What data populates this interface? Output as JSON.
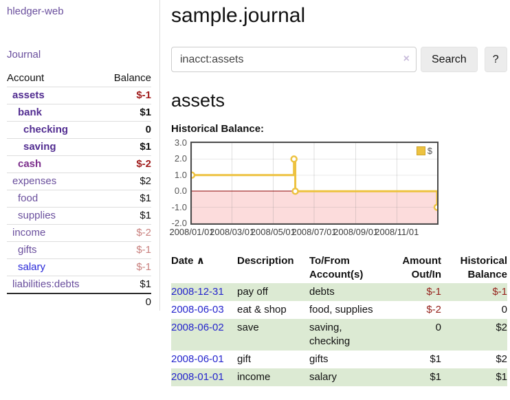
{
  "colors": {
    "link_purple": "#6a4f9d",
    "account_bold_purple": "#522d91",
    "cash_purple": "#7b2d8b",
    "link_blue": "#2626d8",
    "date_blue": "#2525cd",
    "negative_dark_red": "#a01c1c",
    "negative_light_red": "#c9807e",
    "register_negative_red": "#96231d",
    "row_highlight_green": "#dcead3",
    "chart_gold": "#edc240",
    "chart_negative_pink": "#fcdcdc",
    "chart_zero_line": "#8b0000"
  },
  "sidebar": {
    "brand": "hledger-web",
    "journal_link": "Journal",
    "accounts": {
      "header": {
        "account": "Account",
        "balance": "Balance"
      },
      "rows": [
        {
          "name": "assets",
          "indent": 1,
          "bold": true,
          "color": "#522d91",
          "balance": "$-1",
          "bcolor": "#a01c1c",
          "bbold": true
        },
        {
          "name": "bank",
          "indent": 2,
          "bold": true,
          "color": "#522d91",
          "balance": "$1",
          "bcolor": "#111111",
          "bbold": true
        },
        {
          "name": "checking",
          "indent": 3,
          "bold": true,
          "color": "#522d91",
          "balance": "0",
          "bcolor": "#111111",
          "bbold": true
        },
        {
          "name": "saving",
          "indent": 3,
          "bold": true,
          "color": "#522d91",
          "balance": "$1",
          "bcolor": "#111111",
          "bbold": true
        },
        {
          "name": "cash",
          "indent": 2,
          "bold": true,
          "color": "#7b2d8b",
          "balance": "$-2",
          "bcolor": "#a01c1c",
          "bbold": true
        },
        {
          "name": "expenses",
          "indent": 1,
          "bold": false,
          "color": "#6a4f9d",
          "balance": "$2",
          "bcolor": "#111111",
          "bbold": false
        },
        {
          "name": "food",
          "indent": 2,
          "bold": false,
          "color": "#6a4f9d",
          "balance": "$1",
          "bcolor": "#111111",
          "bbold": false
        },
        {
          "name": "supplies",
          "indent": 2,
          "bold": false,
          "color": "#6a4f9d",
          "balance": "$1",
          "bcolor": "#111111",
          "bbold": false
        },
        {
          "name": "income",
          "indent": 1,
          "bold": false,
          "color": "#6a4f9d",
          "balance": "$-2",
          "bcolor": "#c9807e",
          "bbold": false
        },
        {
          "name": "gifts",
          "indent": 2,
          "bold": false,
          "color": "#6a4f9d",
          "balance": "$-1",
          "bcolor": "#c9807e",
          "bbold": false
        },
        {
          "name": "salary",
          "indent": 2,
          "bold": false,
          "color": "#2626d8",
          "balance": "$-1",
          "bcolor": "#c9807e",
          "bbold": false
        },
        {
          "name": "liabilities:debts",
          "indent": 1,
          "bold": false,
          "color": "#6a4f9d",
          "balance": "$1",
          "bcolor": "#111111",
          "bbold": false
        }
      ],
      "total": "0"
    }
  },
  "main": {
    "title": "sample.journal",
    "search": {
      "query": "inacct:assets",
      "clear_icon": "×",
      "search_button": "Search",
      "help_button": "?"
    },
    "account_heading": "assets"
  },
  "chart_data": {
    "type": "line",
    "step": true,
    "title": "Historical Balance:",
    "x_range": [
      "2008-01-01",
      "2008-12-31"
    ],
    "ylim": [
      -2,
      3
    ],
    "y_ticks": [
      {
        "value": 3,
        "label": "3.0"
      },
      {
        "value": 2,
        "label": "2.0"
      },
      {
        "value": 1,
        "label": "1.0"
      },
      {
        "value": 0,
        "label": "0.0"
      },
      {
        "value": -1,
        "label": "-1.0"
      },
      {
        "value": -2,
        "label": "-2.0"
      }
    ],
    "x_ticks": [
      {
        "date": "2008-01-01",
        "label": "2008/01/01"
      },
      {
        "date": "2008-03-01",
        "label": "2008/03/01"
      },
      {
        "date": "2008-05-01",
        "label": "2008/05/01"
      },
      {
        "date": "2008-07-01",
        "label": "2008/07/01"
      },
      {
        "date": "2008-09-01",
        "label": "2008/09/01"
      },
      {
        "date": "2008-11-01",
        "label": "2008/11/01"
      }
    ],
    "series": [
      {
        "name": "$",
        "color": "#edc240",
        "points": [
          [
            "2008-01-01",
            1
          ],
          [
            "2008-06-01",
            2
          ],
          [
            "2008-06-03",
            0
          ],
          [
            "2008-12-31",
            -1
          ]
        ]
      }
    ],
    "negative_region_fill": "#fcdcdc",
    "zero_line_color": "#8b0000",
    "legend": {
      "label": "$",
      "swatch_color": "#edc240",
      "position": "top-right"
    },
    "grid": true
  },
  "register": {
    "headers": {
      "date": "Date",
      "sort_icon": "∧",
      "description": "Description",
      "accounts": "To/From\nAccount(s)",
      "amount": "Amount\nOut/In",
      "balance": "Historical\nBalance"
    },
    "rows": [
      {
        "date": "2008-12-31",
        "description": "pay off",
        "accounts": "debts",
        "amount": "$-1",
        "amount_color": "#96231d",
        "balance": "$-1",
        "balance_color": "#96231d",
        "highlight": true
      },
      {
        "date": "2008-06-03",
        "description": "eat & shop",
        "accounts": "food, supplies",
        "amount": "$-2",
        "amount_color": "#96231d",
        "balance": "0",
        "balance_color": "#111111",
        "highlight": false
      },
      {
        "date": "2008-06-02",
        "description": "save",
        "accounts": "saving, checking",
        "amount": "0",
        "amount_color": "#111111",
        "balance": "$2",
        "balance_color": "#111111",
        "highlight": true
      },
      {
        "date": "2008-06-01",
        "description": "gift",
        "accounts": "gifts",
        "amount": "$1",
        "amount_color": "#111111",
        "balance": "$2",
        "balance_color": "#111111",
        "highlight": false
      },
      {
        "date": "2008-01-01",
        "description": "income",
        "accounts": "salary",
        "amount": "$1",
        "amount_color": "#111111",
        "balance": "$1",
        "balance_color": "#111111",
        "highlight": true
      }
    ]
  }
}
